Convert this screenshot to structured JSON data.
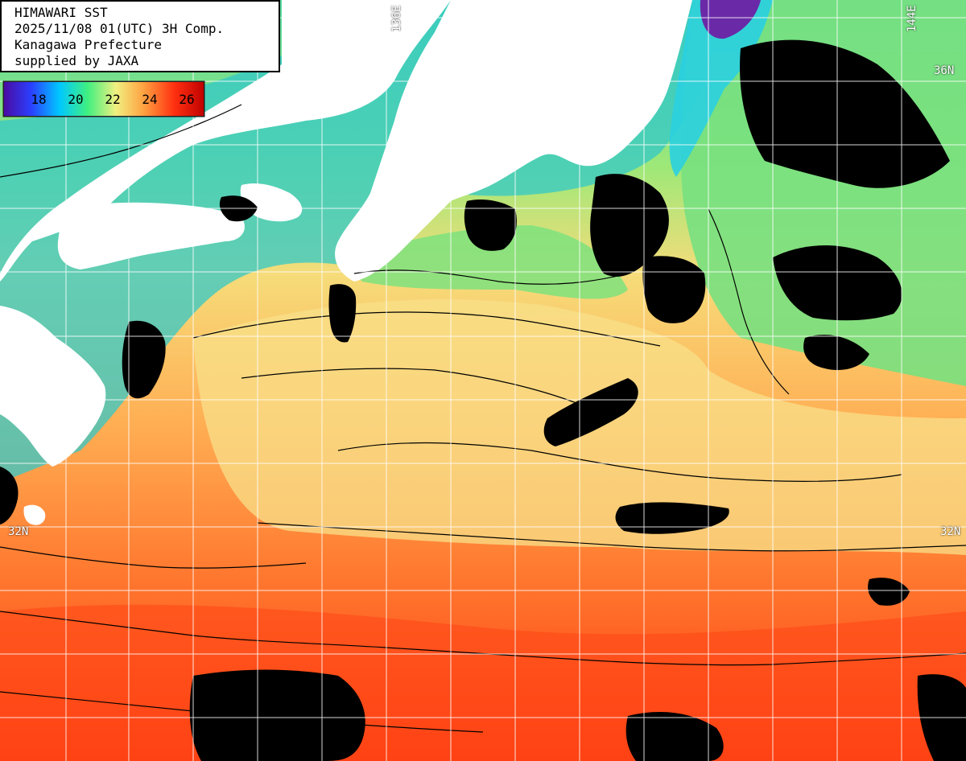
{
  "info": {
    "line1": "HIMAWARI SST",
    "line2": "2025/11/08 01(UTC) 3H Comp.",
    "line3": "Kanagawa Prefecture",
    "line4": "supplied by JAXA"
  },
  "legend": {
    "ticks": [
      "18",
      "20",
      "22",
      "24",
      "26"
    ],
    "colors": [
      "#4a0aa0",
      "#2a40ff",
      "#00c8ff",
      "#40f080",
      "#f0f080",
      "#ffa040",
      "#ff3010",
      "#c00000"
    ]
  },
  "grid_labels": {
    "lat_36": "36N",
    "lat_32": "32N",
    "lat_32_right": "32N",
    "lon_136": "136E",
    "lon_144": "144E"
  },
  "map_colors": {
    "land": "#ffffff",
    "cloud": "#000000",
    "grid": "#ffffff",
    "contour": "#000000"
  }
}
